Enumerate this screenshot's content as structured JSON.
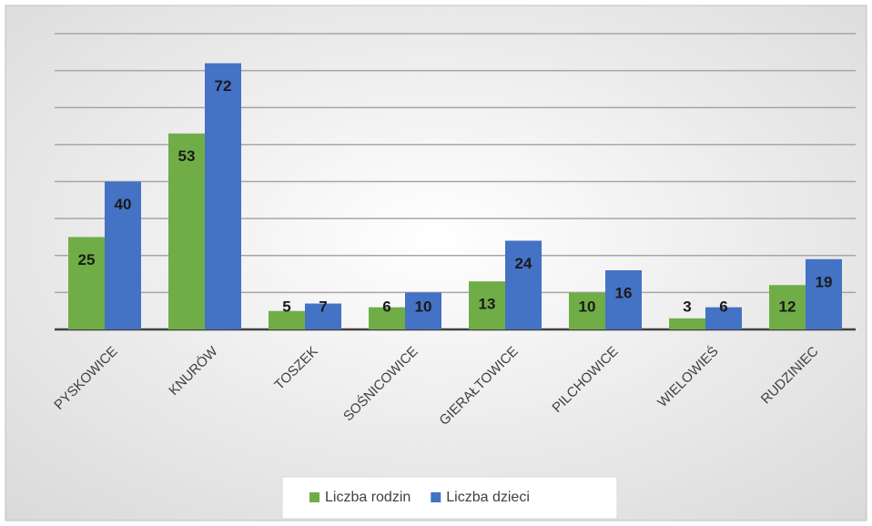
{
  "chart_data": {
    "type": "bar",
    "categories": [
      "PYSKOWICE",
      "KNURÓW",
      "TOSZEK",
      "SOŚNICOWICE",
      "GIERAŁTOWICE",
      "PILCHOWICE",
      "WIELOWIEŚ",
      "RUDZINIEC"
    ],
    "series": [
      {
        "name": "Liczba rodzin",
        "color": "#70ad47",
        "values": [
          25,
          53,
          5,
          6,
          13,
          10,
          3,
          12
        ]
      },
      {
        "name": "Liczba dzieci",
        "color": "#4472c4",
        "values": [
          40,
          72,
          7,
          10,
          24,
          16,
          6,
          19
        ]
      }
    ],
    "ylim": [
      0,
      80
    ],
    "yticks": [
      0,
      10,
      20,
      30,
      40,
      50,
      60,
      70,
      80
    ],
    "grid": true,
    "legend": "bottom"
  }
}
